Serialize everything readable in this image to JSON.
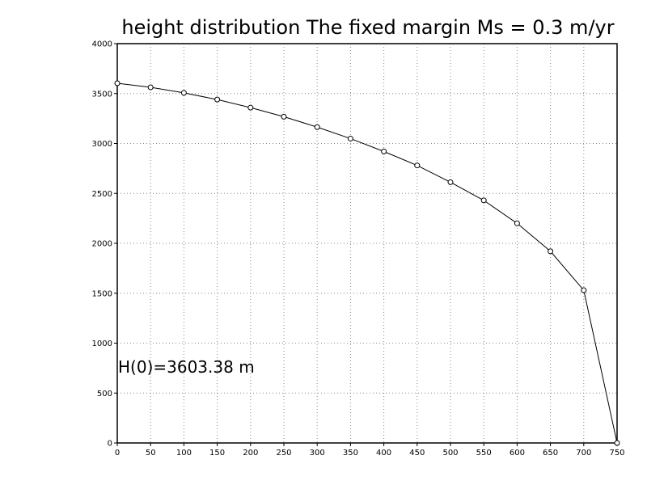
{
  "chart_data": {
    "type": "line",
    "title": "height distribution The fixed margin Ms = 0.3 m/yr",
    "xlabel": "",
    "ylabel": "",
    "xlim": [
      0,
      750
    ],
    "ylim": [
      0,
      4000
    ],
    "xticks": [
      0,
      50,
      100,
      150,
      200,
      250,
      300,
      350,
      400,
      450,
      500,
      550,
      600,
      650,
      700,
      750
    ],
    "yticks": [
      0,
      500,
      1000,
      1500,
      2000,
      2500,
      3000,
      3500,
      4000
    ],
    "grid": true,
    "annotation": "H(0)=3603.38 m",
    "series": [
      {
        "x": [
          0,
          50,
          100,
          150,
          200,
          250,
          300,
          350,
          400,
          450,
          500,
          550,
          600,
          650,
          700,
          750
        ],
        "y": [
          3603,
          3563,
          3507,
          3440,
          3359,
          3268,
          3164,
          3049,
          2920,
          2780,
          2612,
          2430,
          2200,
          1920,
          1530,
          0
        ],
        "marker": "open-circle",
        "color": "#000000"
      }
    ]
  }
}
